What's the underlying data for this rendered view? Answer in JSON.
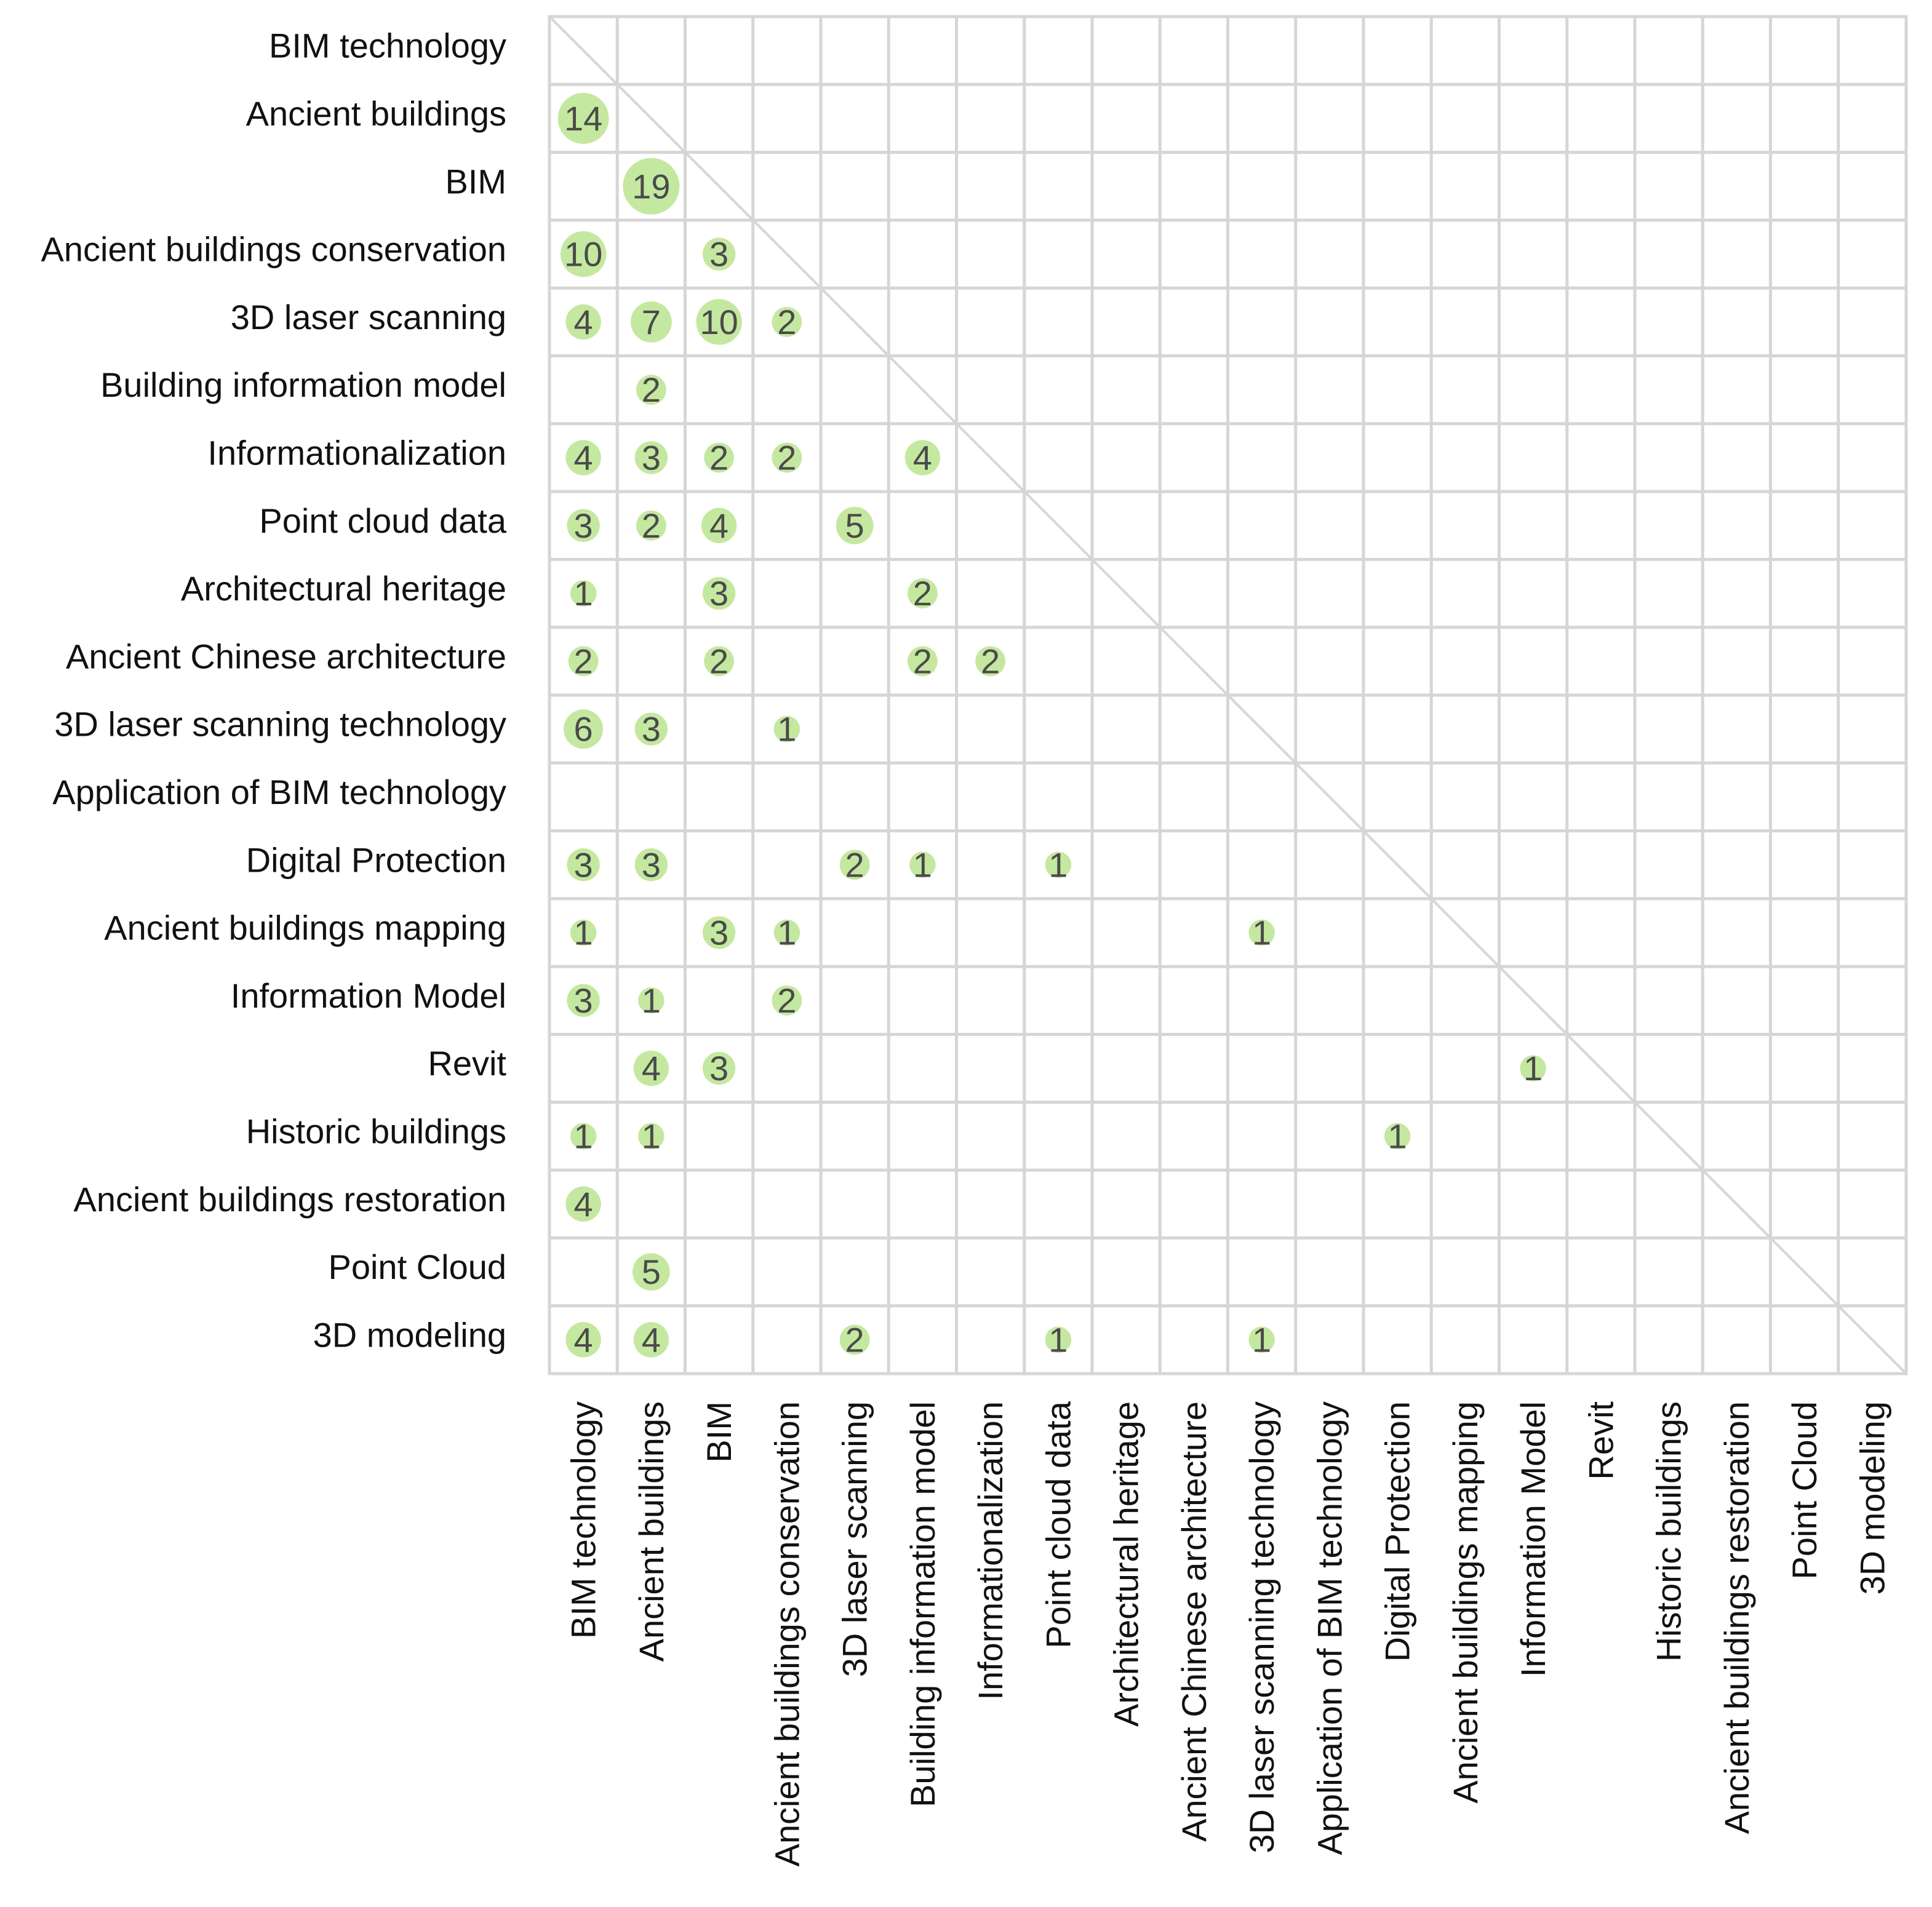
{
  "chart_data": {
    "type": "heatmap",
    "title": "",
    "xlabel": "",
    "ylabel": "",
    "grid": true,
    "bubble_color": "#c5e8a0",
    "row_labels": [
      "BIM technology",
      "Ancient buildings",
      "BIM",
      "Ancient buildings conservation",
      "3D laser scanning",
      "Building information model",
      "Informationalization",
      "Point cloud data",
      "Architectural heritage",
      "Ancient Chinese architecture",
      "3D laser scanning technology",
      "Application of BIM technology",
      "Digital Protection",
      "Ancient buildings mapping",
      "Information Model",
      "Revit",
      "Historic buildings",
      "Ancient buildings restoration",
      "Point Cloud",
      "3D modeling"
    ],
    "column_labels": [
      "BIM technology",
      "Ancient buildings",
      "BIM",
      "Ancient buildings conservation",
      "3D laser scanning",
      "Building information model",
      "Informationalization",
      "Point cloud data",
      "Architectural heritage",
      "Ancient Chinese architecture",
      "3D laser scanning technology",
      "Application of BIM technology",
      "Digital Protection",
      "Ancient buildings mapping",
      "Information Model",
      "Revit",
      "Historic buildings",
      "Ancient buildings restoration",
      "Point Cloud",
      "3D modeling"
    ],
    "cells": [
      {
        "row": 1,
        "col": 0,
        "value": 14
      },
      {
        "row": 2,
        "col": 1,
        "value": 19
      },
      {
        "row": 3,
        "col": 0,
        "value": 10
      },
      {
        "row": 3,
        "col": 2,
        "value": 3
      },
      {
        "row": 4,
        "col": 0,
        "value": 4
      },
      {
        "row": 4,
        "col": 1,
        "value": 7
      },
      {
        "row": 4,
        "col": 2,
        "value": 10
      },
      {
        "row": 4,
        "col": 3,
        "value": 2
      },
      {
        "row": 5,
        "col": 1,
        "value": 2
      },
      {
        "row": 6,
        "col": 0,
        "value": 4
      },
      {
        "row": 6,
        "col": 1,
        "value": 3
      },
      {
        "row": 6,
        "col": 2,
        "value": 2
      },
      {
        "row": 6,
        "col": 3,
        "value": 2
      },
      {
        "row": 6,
        "col": 5,
        "value": 4
      },
      {
        "row": 7,
        "col": 0,
        "value": 3
      },
      {
        "row": 7,
        "col": 1,
        "value": 2
      },
      {
        "row": 7,
        "col": 2,
        "value": 4
      },
      {
        "row": 7,
        "col": 4,
        "value": 5
      },
      {
        "row": 8,
        "col": 0,
        "value": 1
      },
      {
        "row": 8,
        "col": 2,
        "value": 3
      },
      {
        "row": 8,
        "col": 5,
        "value": 2
      },
      {
        "row": 9,
        "col": 0,
        "value": 2
      },
      {
        "row": 9,
        "col": 2,
        "value": 2
      },
      {
        "row": 9,
        "col": 5,
        "value": 2
      },
      {
        "row": 9,
        "col": 6,
        "value": 2
      },
      {
        "row": 10,
        "col": 0,
        "value": 6
      },
      {
        "row": 10,
        "col": 1,
        "value": 3
      },
      {
        "row": 10,
        "col": 3,
        "value": 1
      },
      {
        "row": 12,
        "col": 0,
        "value": 3
      },
      {
        "row": 12,
        "col": 1,
        "value": 3
      },
      {
        "row": 12,
        "col": 4,
        "value": 2
      },
      {
        "row": 12,
        "col": 5,
        "value": 1
      },
      {
        "row": 12,
        "col": 7,
        "value": 1
      },
      {
        "row": 13,
        "col": 0,
        "value": 1
      },
      {
        "row": 13,
        "col": 2,
        "value": 3
      },
      {
        "row": 13,
        "col": 3,
        "value": 1
      },
      {
        "row": 13,
        "col": 10,
        "value": 1
      },
      {
        "row": 14,
        "col": 0,
        "value": 3
      },
      {
        "row": 14,
        "col": 1,
        "value": 1
      },
      {
        "row": 14,
        "col": 3,
        "value": 2
      },
      {
        "row": 15,
        "col": 1,
        "value": 4
      },
      {
        "row": 15,
        "col": 2,
        "value": 3
      },
      {
        "row": 15,
        "col": 14,
        "value": 1
      },
      {
        "row": 16,
        "col": 0,
        "value": 1
      },
      {
        "row": 16,
        "col": 1,
        "value": 1
      },
      {
        "row": 16,
        "col": 12,
        "value": 1
      },
      {
        "row": 17,
        "col": 0,
        "value": 4
      },
      {
        "row": 18,
        "col": 1,
        "value": 5
      },
      {
        "row": 19,
        "col": 0,
        "value": 4
      },
      {
        "row": 19,
        "col": 1,
        "value": 4
      },
      {
        "row": 19,
        "col": 4,
        "value": 2
      },
      {
        "row": 19,
        "col": 7,
        "value": 1
      },
      {
        "row": 19,
        "col": 10,
        "value": 1
      }
    ]
  }
}
